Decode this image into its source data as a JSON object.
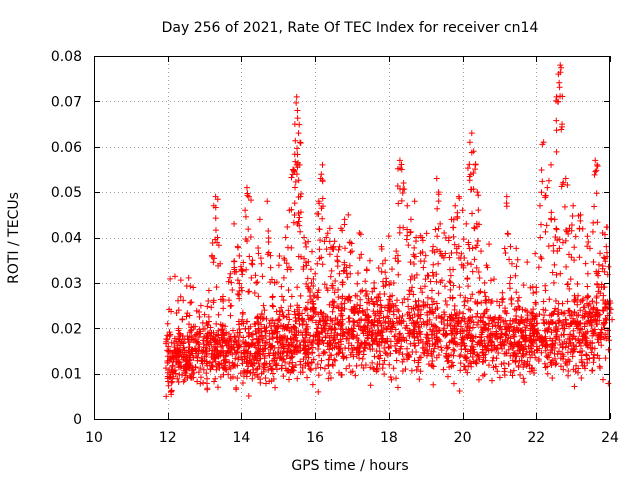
{
  "chart_data": {
    "type": "scatter",
    "title": "Day 256 of 2021, Rate Of TEC Index for receiver cn14",
    "xlabel": "GPS time / hours",
    "ylabel": "ROTI / TECUs",
    "xlim": [
      10,
      24
    ],
    "ylim": [
      0,
      0.08
    ],
    "xticks": [
      10,
      12,
      14,
      16,
      18,
      20,
      22,
      24
    ],
    "xtick_labels": [
      "10",
      "12",
      "14",
      "16",
      "18",
      "20",
      "22",
      "24"
    ],
    "yticks": [
      0,
      0.01,
      0.02,
      0.03,
      0.04,
      0.05,
      0.06,
      0.07,
      0.08
    ],
    "ytick_labels": [
      "0",
      "0.01",
      "0.02",
      "0.03",
      "0.04",
      "0.05",
      "0.06",
      "0.07",
      "0.08"
    ],
    "grid": true,
    "marker": "+",
    "color": "#ff0000",
    "series": [
      {
        "name": "ROTI",
        "points": [
          [
            12.0,
            0.021
          ],
          [
            12.1,
            0.008
          ],
          [
            12.2,
            0.015
          ],
          [
            12.3,
            0.024
          ],
          [
            12.4,
            0.022
          ],
          [
            12.5,
            0.012
          ],
          [
            12.6,
            0.018
          ],
          [
            12.8,
            0.019
          ],
          [
            12.9,
            0.025
          ],
          [
            13.0,
            0.023
          ],
          [
            13.1,
            0.026
          ],
          [
            13.2,
            0.036
          ],
          [
            13.25,
            0.047
          ],
          [
            13.3,
            0.049
          ],
          [
            13.35,
            0.04
          ],
          [
            13.5,
            0.027
          ],
          [
            13.7,
            0.032
          ],
          [
            13.8,
            0.043
          ],
          [
            13.9,
            0.038
          ],
          [
            14.0,
            0.033
          ],
          [
            14.1,
            0.046
          ],
          [
            14.15,
            0.051
          ],
          [
            14.2,
            0.049
          ],
          [
            14.3,
            0.035
          ],
          [
            14.4,
            0.03
          ],
          [
            14.5,
            0.044
          ],
          [
            14.6,
            0.025
          ],
          [
            14.7,
            0.048
          ],
          [
            14.9,
            0.03
          ],
          [
            15.0,
            0.022
          ],
          [
            15.1,
            0.027
          ],
          [
            15.2,
            0.04
          ],
          [
            15.3,
            0.046
          ],
          [
            15.4,
            0.055
          ],
          [
            15.45,
            0.065
          ],
          [
            15.5,
            0.071
          ],
          [
            15.52,
            0.068
          ],
          [
            15.55,
            0.063
          ],
          [
            15.58,
            0.056
          ],
          [
            15.6,
            0.049
          ],
          [
            15.7,
            0.04
          ],
          [
            15.8,
            0.031
          ],
          [
            15.9,
            0.03
          ],
          [
            16.0,
            0.032
          ],
          [
            16.1,
            0.048
          ],
          [
            16.15,
            0.053
          ],
          [
            16.2,
            0.056
          ],
          [
            16.3,
            0.04
          ],
          [
            16.4,
            0.042
          ],
          [
            16.5,
            0.038
          ],
          [
            16.6,
            0.035
          ],
          [
            16.7,
            0.042
          ],
          [
            16.8,
            0.044
          ],
          [
            16.9,
            0.045
          ],
          [
            17.0,
            0.037
          ],
          [
            17.2,
            0.041
          ],
          [
            17.4,
            0.033
          ],
          [
            17.6,
            0.03
          ],
          [
            17.8,
            0.038
          ],
          [
            17.9,
            0.035
          ],
          [
            18.0,
            0.025
          ],
          [
            18.2,
            0.037
          ],
          [
            18.3,
            0.057
          ],
          [
            18.35,
            0.055
          ],
          [
            18.4,
            0.052
          ],
          [
            18.5,
            0.047
          ],
          [
            18.6,
            0.044
          ],
          [
            18.7,
            0.048
          ],
          [
            18.9,
            0.04
          ],
          [
            19.0,
            0.036
          ],
          [
            19.2,
            0.038
          ],
          [
            19.3,
            0.053
          ],
          [
            19.35,
            0.05
          ],
          [
            19.5,
            0.041
          ],
          [
            19.7,
            0.044
          ],
          [
            19.8,
            0.047
          ],
          [
            19.9,
            0.049
          ],
          [
            20.0,
            0.046
          ],
          [
            20.1,
            0.043
          ],
          [
            20.2,
            0.061
          ],
          [
            20.25,
            0.063
          ],
          [
            20.3,
            0.059
          ],
          [
            20.35,
            0.056
          ],
          [
            20.4,
            0.05
          ],
          [
            20.5,
            0.037
          ],
          [
            20.6,
            0.03
          ],
          [
            20.8,
            0.026
          ],
          [
            21.0,
            0.025
          ],
          [
            21.2,
            0.049
          ],
          [
            21.3,
            0.038
          ],
          [
            21.5,
            0.026
          ],
          [
            21.7,
            0.024
          ],
          [
            21.9,
            0.022
          ],
          [
            22.0,
            0.029
          ],
          [
            22.1,
            0.047
          ],
          [
            22.2,
            0.061
          ],
          [
            22.3,
            0.051
          ],
          [
            22.4,
            0.056
          ],
          [
            22.5,
            0.044
          ],
          [
            22.55,
            0.071
          ],
          [
            22.6,
            0.076
          ],
          [
            22.65,
            0.078
          ],
          [
            22.7,
            0.065
          ],
          [
            22.8,
            0.053
          ],
          [
            22.9,
            0.042
          ],
          [
            23.0,
            0.047
          ],
          [
            23.2,
            0.045
          ],
          [
            23.4,
            0.032
          ],
          [
            23.6,
            0.057
          ],
          [
            23.65,
            0.056
          ],
          [
            23.7,
            0.034
          ],
          [
            23.8,
            0.041
          ],
          [
            23.9,
            0.038
          ],
          [
            24.0,
            0.026
          ]
        ]
      }
    ],
    "dense_band": {
      "x_range": [
        11.95,
        24.0
      ],
      "profile": [
        [
          12.0,
          0.004,
          0.02
        ],
        [
          13.0,
          0.004,
          0.022
        ],
        [
          14.0,
          0.004,
          0.024
        ],
        [
          15.0,
          0.004,
          0.025
        ],
        [
          16.0,
          0.005,
          0.028
        ],
        [
          17.0,
          0.006,
          0.03
        ],
        [
          18.0,
          0.005,
          0.03
        ],
        [
          19.0,
          0.005,
          0.029
        ],
        [
          20.0,
          0.004,
          0.03
        ],
        [
          21.0,
          0.005,
          0.026
        ],
        [
          22.0,
          0.005,
          0.027
        ],
        [
          23.0,
          0.005,
          0.03
        ],
        [
          24.0,
          0.005,
          0.032
        ]
      ]
    }
  }
}
